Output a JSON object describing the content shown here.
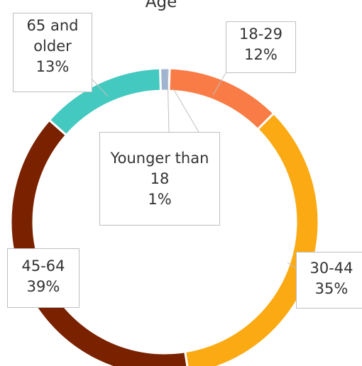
{
  "chart_data": {
    "type": "pie",
    "title": "Age",
    "categories": [
      "Younger than 18",
      "18-29",
      "30-44",
      "45-64",
      "65 and older"
    ],
    "values": [
      1,
      12,
      35,
      39,
      13
    ],
    "value_labels": [
      "1%",
      "12%",
      "35%",
      "39%",
      "13%"
    ],
    "colors": [
      "#9fb4d0",
      "#f97b45",
      "#fbaa14",
      "#7a2200",
      "#44c9c0"
    ]
  }
}
